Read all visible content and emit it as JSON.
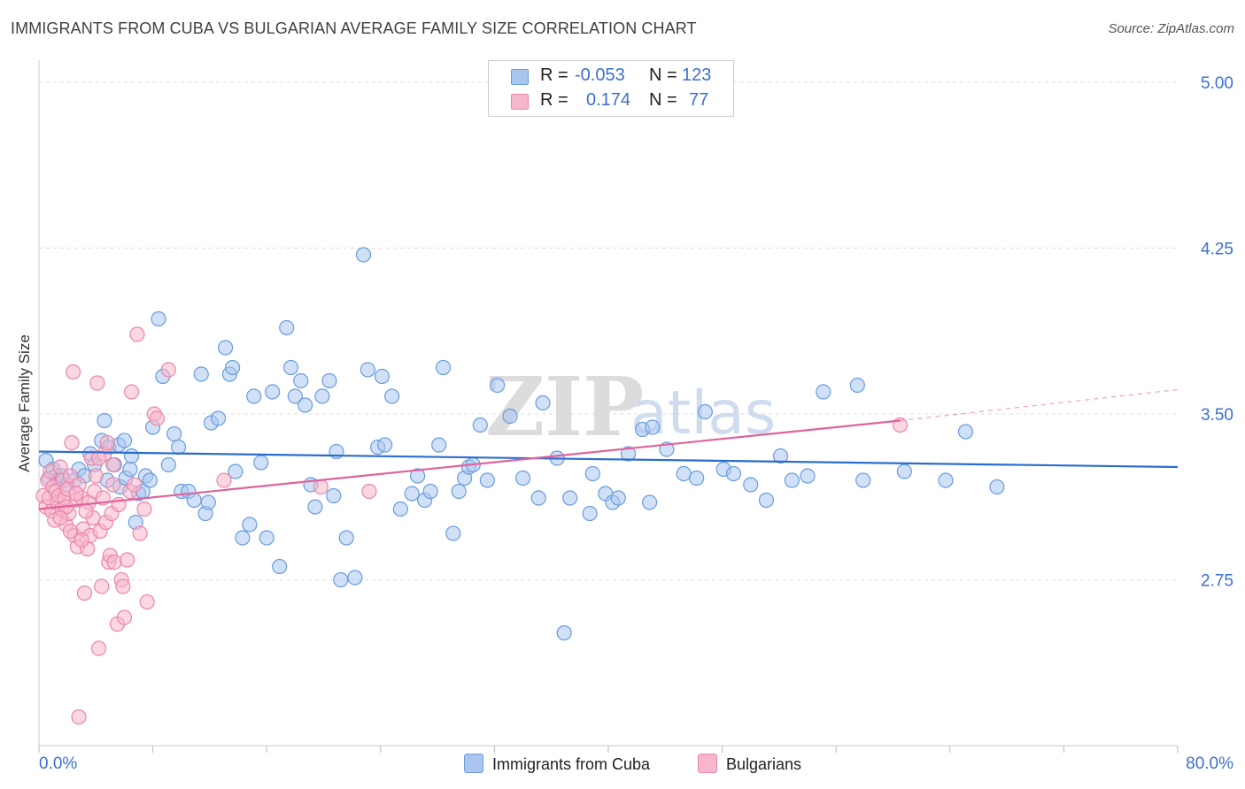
{
  "title": "IMMIGRANTS FROM CUBA VS BULGARIAN AVERAGE FAMILY SIZE CORRELATION CHART",
  "source": "Source: ZipAtlas.com",
  "watermark": {
    "zip": "ZIP",
    "atlas": "atlas"
  },
  "legend": {
    "r_label": "R =",
    "n_label": "N =",
    "rows": [
      {
        "r": "-0.053",
        "n": "123",
        "fill": "#b3cdf2",
        "stroke": "#6f9fdf"
      },
      {
        "r": "0.174",
        "n": "77",
        "fill": "#f9bfd1",
        "stroke": "#ea8fb0"
      }
    ]
  },
  "series_names": [
    "Immigrants from Cuba",
    "Bulgarians"
  ],
  "colors": {
    "blue_fill": "#a9c6f0",
    "blue_stroke": "#6a9cdc",
    "blue_line": "#2a6dd0",
    "pink_fill": "#f7b6cb",
    "pink_stroke": "#ea86aa",
    "pink_line": "#e0639a",
    "axis_text": "#3b6fd0",
    "grid": "#dddddd"
  },
  "chart_data": {
    "type": "scatter",
    "title": "IMMIGRANTS FROM CUBA VS BULGARIAN AVERAGE FAMILY SIZE CORRELATION CHART",
    "xlabel": "",
    "ylabel": "Average Family Size",
    "xlim": [
      0,
      80
    ],
    "ylim": [
      2.0,
      5.1
    ],
    "x_tick_labels": [
      "0.0%",
      "80.0%"
    ],
    "y_ticks": [
      5.0,
      4.25,
      3.5,
      2.75
    ],
    "y_tick_labels": [
      "5.00",
      "4.25",
      "3.50",
      "2.75"
    ],
    "grid": true,
    "legend_position": "top-center",
    "series": [
      {
        "name": "Immigrants from Cuba",
        "r": -0.053,
        "n": 123,
        "trend": {
          "x": [
            0,
            80
          ],
          "y": [
            3.33,
            3.26
          ]
        },
        "points": [
          [
            0.5,
            3.29
          ],
          [
            0.7,
            3.21
          ],
          [
            1.0,
            3.25
          ],
          [
            1.2,
            3.22
          ],
          [
            1.4,
            3.2
          ],
          [
            1.6,
            3.22
          ],
          [
            2.0,
            3.18
          ],
          [
            2.5,
            3.2
          ],
          [
            2.8,
            3.25
          ],
          [
            3.2,
            3.22
          ],
          [
            3.6,
            3.32
          ],
          [
            3.9,
            3.27
          ],
          [
            4.4,
            3.38
          ],
          [
            4.9,
            3.35
          ],
          [
            4.6,
            3.47
          ],
          [
            4.8,
            3.2
          ],
          [
            5.3,
            3.27
          ],
          [
            5.6,
            3.36
          ],
          [
            5.7,
            3.17
          ],
          [
            6.0,
            3.38
          ],
          [
            6.1,
            3.21
          ],
          [
            6.4,
            3.25
          ],
          [
            6.5,
            3.31
          ],
          [
            6.8,
            3.01
          ],
          [
            7.0,
            3.14
          ],
          [
            7.3,
            3.15
          ],
          [
            7.5,
            3.22
          ],
          [
            7.8,
            3.2
          ],
          [
            8.0,
            3.44
          ],
          [
            8.4,
            3.93
          ],
          [
            8.7,
            3.67
          ],
          [
            9.1,
            3.27
          ],
          [
            9.5,
            3.41
          ],
          [
            9.8,
            3.35
          ],
          [
            10.0,
            3.15
          ],
          [
            10.5,
            3.15
          ],
          [
            10.9,
            3.11
          ],
          [
            11.4,
            3.68
          ],
          [
            11.7,
            3.05
          ],
          [
            11.9,
            3.1
          ],
          [
            12.1,
            3.46
          ],
          [
            12.6,
            3.48
          ],
          [
            13.1,
            3.8
          ],
          [
            13.4,
            3.68
          ],
          [
            13.6,
            3.71
          ],
          [
            13.8,
            3.24
          ],
          [
            14.3,
            2.94
          ],
          [
            14.8,
            3.0
          ],
          [
            15.1,
            3.58
          ],
          [
            15.6,
            3.28
          ],
          [
            16.0,
            2.94
          ],
          [
            16.4,
            3.6
          ],
          [
            16.9,
            2.81
          ],
          [
            17.4,
            3.89
          ],
          [
            17.7,
            3.71
          ],
          [
            18.0,
            3.58
          ],
          [
            18.4,
            3.65
          ],
          [
            18.7,
            3.54
          ],
          [
            19.1,
            3.18
          ],
          [
            19.4,
            3.08
          ],
          [
            19.9,
            3.58
          ],
          [
            20.4,
            3.65
          ],
          [
            20.9,
            3.33
          ],
          [
            20.7,
            3.13
          ],
          [
            21.2,
            2.75
          ],
          [
            21.6,
            2.94
          ],
          [
            22.2,
            2.76
          ],
          [
            22.8,
            4.22
          ],
          [
            23.1,
            3.7
          ],
          [
            23.8,
            3.35
          ],
          [
            24.3,
            3.36
          ],
          [
            24.1,
            3.67
          ],
          [
            24.8,
            3.58
          ],
          [
            25.4,
            3.07
          ],
          [
            26.2,
            3.14
          ],
          [
            26.6,
            3.22
          ],
          [
            27.1,
            3.11
          ],
          [
            27.5,
            3.15
          ],
          [
            28.1,
            3.36
          ],
          [
            28.4,
            3.71
          ],
          [
            29.1,
            2.96
          ],
          [
            29.5,
            3.15
          ],
          [
            29.9,
            3.21
          ],
          [
            30.2,
            3.26
          ],
          [
            30.5,
            3.27
          ],
          [
            31.0,
            3.45
          ],
          [
            31.5,
            3.2
          ],
          [
            32.2,
            3.63
          ],
          [
            33.1,
            3.49
          ],
          [
            34.0,
            3.21
          ],
          [
            35.1,
            3.12
          ],
          [
            35.4,
            3.55
          ],
          [
            36.4,
            3.3
          ],
          [
            36.9,
            2.51
          ],
          [
            37.3,
            3.12
          ],
          [
            38.7,
            3.05
          ],
          [
            38.9,
            3.23
          ],
          [
            39.8,
            3.14
          ],
          [
            40.3,
            3.1
          ],
          [
            40.7,
            3.12
          ],
          [
            41.4,
            3.32
          ],
          [
            42.4,
            3.43
          ],
          [
            42.9,
            3.1
          ],
          [
            43.1,
            3.44
          ],
          [
            44.1,
            3.34
          ],
          [
            45.3,
            3.23
          ],
          [
            46.2,
            3.21
          ],
          [
            46.8,
            3.51
          ],
          [
            48.1,
            3.25
          ],
          [
            48.8,
            3.23
          ],
          [
            50.0,
            3.18
          ],
          [
            51.1,
            3.11
          ],
          [
            52.1,
            3.31
          ],
          [
            52.9,
            3.2
          ],
          [
            54.0,
            3.22
          ],
          [
            55.1,
            3.6
          ],
          [
            57.5,
            3.63
          ],
          [
            57.9,
            3.2
          ],
          [
            60.8,
            3.24
          ],
          [
            63.7,
            3.2
          ],
          [
            65.1,
            3.42
          ],
          [
            67.3,
            3.17
          ]
        ]
      },
      {
        "name": "Bulgarians",
        "r": 0.174,
        "n": 77,
        "trend": {
          "x": [
            0,
            60.5
          ],
          "y": [
            3.07,
            3.47
          ]
        },
        "trend_dashed": {
          "x": [
            60.5,
            80
          ],
          "y": [
            3.47,
            3.61
          ]
        },
        "points": [
          [
            0.3,
            3.13
          ],
          [
            0.5,
            3.08
          ],
          [
            0.6,
            3.2
          ],
          [
            0.7,
            3.12
          ],
          [
            0.8,
            3.24
          ],
          [
            0.9,
            3.06
          ],
          [
            1.0,
            3.17
          ],
          [
            1.1,
            3.02
          ],
          [
            1.2,
            3.15
          ],
          [
            1.3,
            3.1
          ],
          [
            1.4,
            3.13
          ],
          [
            1.5,
            3.26
          ],
          [
            1.6,
            3.07
          ],
          [
            1.7,
            3.2
          ],
          [
            1.8,
            3.12
          ],
          [
            1.9,
            3.0
          ],
          [
            2.0,
            3.16
          ],
          [
            2.1,
            3.05
          ],
          [
            2.2,
            3.22
          ],
          [
            2.3,
            3.37
          ],
          [
            2.4,
            3.69
          ],
          [
            2.5,
            2.95
          ],
          [
            2.6,
            3.11
          ],
          [
            2.7,
            2.9
          ],
          [
            2.8,
            3.18
          ],
          [
            3.0,
            3.12
          ],
          [
            3.1,
            2.98
          ],
          [
            3.2,
            2.69
          ],
          [
            3.4,
            2.89
          ],
          [
            3.5,
            3.1
          ],
          [
            3.6,
            2.95
          ],
          [
            3.7,
            3.3
          ],
          [
            3.8,
            3.03
          ],
          [
            3.9,
            3.15
          ],
          [
            4.0,
            3.22
          ],
          [
            4.1,
            3.64
          ],
          [
            4.2,
            2.44
          ],
          [
            4.3,
            2.97
          ],
          [
            4.5,
            3.12
          ],
          [
            4.6,
            3.32
          ],
          [
            4.7,
            3.01
          ],
          [
            4.8,
            3.37
          ],
          [
            4.9,
            2.83
          ],
          [
            5.0,
            2.86
          ],
          [
            5.1,
            3.05
          ],
          [
            5.2,
            3.27
          ],
          [
            5.3,
            2.83
          ],
          [
            5.5,
            2.55
          ],
          [
            5.6,
            3.09
          ],
          [
            5.8,
            2.75
          ],
          [
            5.9,
            2.72
          ],
          [
            6.0,
            2.58
          ],
          [
            6.2,
            2.84
          ],
          [
            6.4,
            3.15
          ],
          [
            6.5,
            3.6
          ],
          [
            6.7,
            3.18
          ],
          [
            6.9,
            3.86
          ],
          [
            7.1,
            2.96
          ],
          [
            7.4,
            3.07
          ],
          [
            7.6,
            2.65
          ],
          [
            8.1,
            3.5
          ],
          [
            8.3,
            3.48
          ],
          [
            9.1,
            3.7
          ],
          [
            13.0,
            3.2
          ],
          [
            19.8,
            3.17
          ],
          [
            23.2,
            3.15
          ],
          [
            60.5,
            3.45
          ],
          [
            2.8,
            2.13
          ],
          [
            1.9,
            3.08
          ],
          [
            2.6,
            3.14
          ],
          [
            3.3,
            3.06
          ],
          [
            1.5,
            3.03
          ],
          [
            4.2,
            3.3
          ],
          [
            5.2,
            3.18
          ],
          [
            3.0,
            2.93
          ],
          [
            2.2,
            2.97
          ],
          [
            4.4,
            2.72
          ]
        ]
      }
    ]
  }
}
